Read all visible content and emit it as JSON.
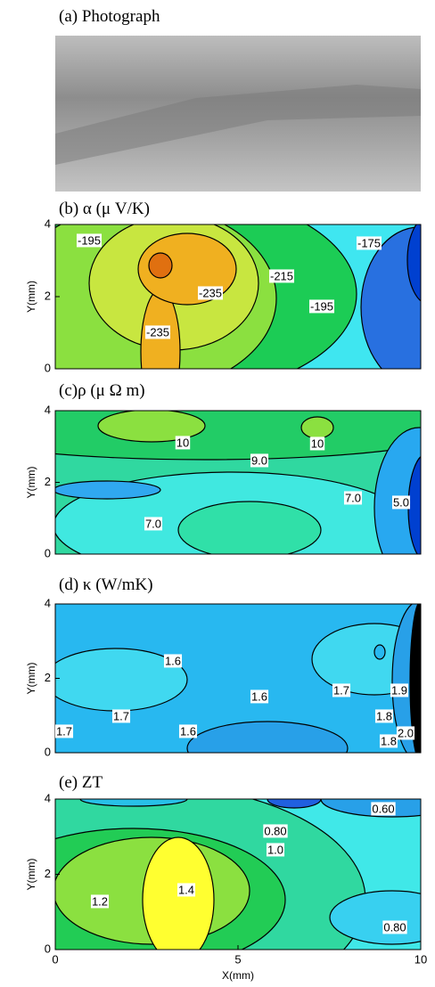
{
  "figure": {
    "panels": [
      {
        "title": "(a) Photograph"
      },
      {
        "title": "(b) α  (μ V/K)",
        "y_label": "Y(mm)",
        "y_ticks": [
          "0",
          "2",
          "4"
        ],
        "contour_labels": [
          "-195",
          "-235",
          "-215",
          "-195",
          "-175",
          "-235"
        ]
      },
      {
        "title": "(c)ρ  (μ Ω m)",
        "y_label": "Y(mm)",
        "y_ticks": [
          "0",
          "2",
          "4"
        ],
        "contour_labels": [
          "10",
          "10",
          "9.0",
          "7.0",
          "5.0",
          "7.0"
        ]
      },
      {
        "title": "(d) κ  (W/mK)",
        "y_label": "Y(mm)",
        "y_ticks": [
          "0",
          "2",
          "4"
        ],
        "contour_labels": [
          "1.6",
          "1.6",
          "1.7",
          "1.9",
          "1.8",
          "2.0",
          "1.7",
          "1.7",
          "1.6",
          "1.8"
        ]
      },
      {
        "title": "(e) ZT",
        "y_label": "Y(mm)",
        "y_ticks": [
          "0",
          "2",
          "4"
        ],
        "contour_labels": [
          "0.60",
          "0.80",
          "1.0",
          "1.2",
          "1.4",
          "0.80"
        ]
      }
    ],
    "x_axis": {
      "label": "X(mm)",
      "ticks": [
        "0",
        "5",
        "10"
      ]
    }
  }
}
